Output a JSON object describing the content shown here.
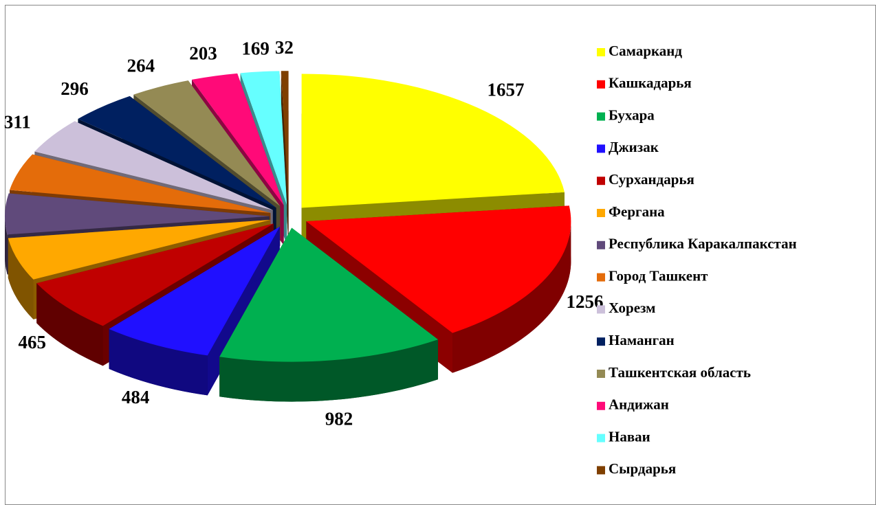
{
  "chart_data": {
    "type": "pie3d",
    "categories": [
      "Самарканд",
      "Кашкадарья",
      "Бухара",
      "Джизак",
      "Сурхандарья",
      "Фергана",
      "Республика Каракалпакстан",
      "Город Ташкент",
      "Хорезм",
      "Наманган",
      "Ташкентская область",
      "Андижан",
      "Наваи",
      "Сырдарья"
    ],
    "values": [
      1657,
      1256,
      982,
      484,
      465,
      370,
      352,
      319,
      311,
      296,
      264,
      203,
      169,
      32
    ],
    "colors": [
      "#ffff00",
      "#ff0000",
      "#00b050",
      "#2010ff",
      "#c00000",
      "#ffa800",
      "#604a7b",
      "#e46c0a",
      "#ccc0da",
      "#002060",
      "#948a54",
      "#ff0a78",
      "#66ffff",
      "#7f3f00"
    ],
    "legend": "right",
    "exploded": true
  }
}
